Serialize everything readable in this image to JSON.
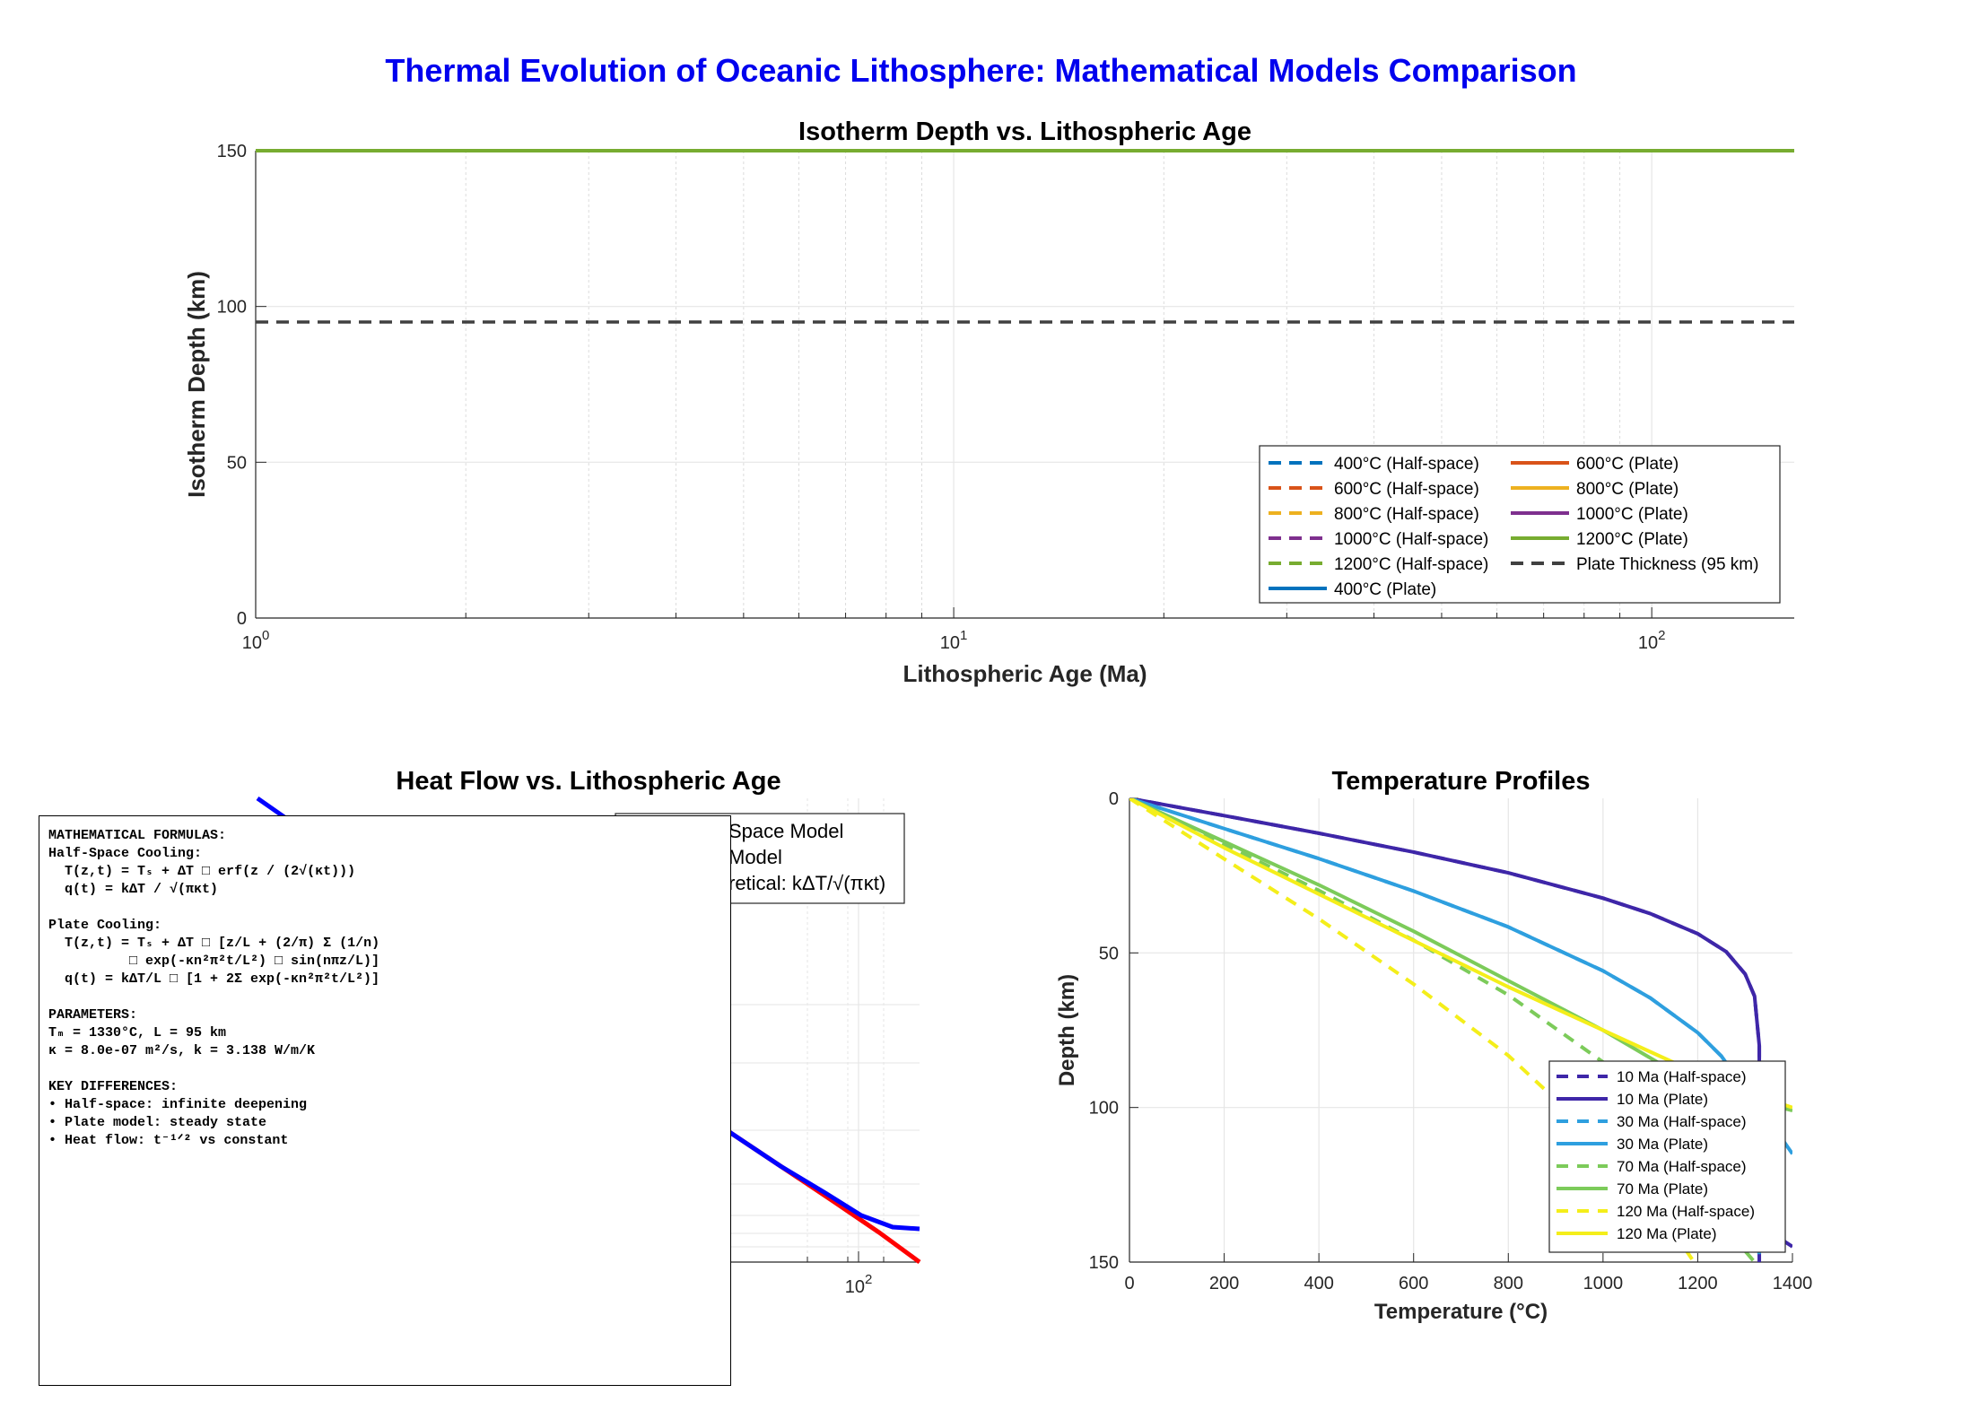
{
  "figure": {
    "suptitle": "Thermal Evolution of Oceanic Lithosphere: Mathematical Models Comparison",
    "title_color": "#0000ee"
  },
  "chart_data": [
    {
      "type": "line",
      "title": "Isotherm Depth vs. Lithospheric Age",
      "xlabel": "Lithospheric Age (Ma)",
      "ylabel": "Isotherm Depth (km)",
      "xscale": "log",
      "xlim": [
        1,
        160
      ],
      "ylim": [
        0,
        150
      ],
      "yticks": [
        0,
        50,
        100,
        150
      ],
      "xtick_labels": [
        {
          "value": 1,
          "base": "10",
          "exp": "0"
        },
        {
          "value": 10,
          "base": "10",
          "exp": "1"
        },
        {
          "value": 100,
          "base": "10",
          "exp": "2"
        }
      ],
      "grid": true,
      "legend_location": "lower-right",
      "legend_columns": 2,
      "legend": [
        {
          "label": "400°C (Half-space)",
          "color": "#0072bd",
          "dash": true
        },
        {
          "label": "600°C (Half-space)",
          "color": "#d95319",
          "dash": true
        },
        {
          "label": "800°C (Half-space)",
          "color": "#edb120",
          "dash": true
        },
        {
          "label": "1000°C (Half-space)",
          "color": "#7e2f8e",
          "dash": true
        },
        {
          "label": "1200°C (Half-space)",
          "color": "#77ac30",
          "dash": true
        },
        {
          "label": "400°C (Plate)",
          "color": "#0072bd",
          "dash": false
        },
        {
          "label": "600°C (Plate)",
          "color": "#d95319",
          "dash": false
        },
        {
          "label": "800°C (Plate)",
          "color": "#edb120",
          "dash": false
        },
        {
          "label": "1000°C (Plate)",
          "color": "#7e2f8e",
          "dash": false
        },
        {
          "label": "1200°C (Plate)",
          "color": "#77ac30",
          "dash": false
        },
        {
          "label": "Plate Thickness (95 km)",
          "color": "#404040",
          "dash": true
        }
      ],
      "series": [
        {
          "name": "1200°C (Plate)",
          "color": "#77ac30",
          "dash": false,
          "x": [
            1,
            160
          ],
          "y": [
            150,
            150
          ]
        },
        {
          "name": "Plate Thickness (95 km)",
          "color": "#404040",
          "dash": true,
          "x": [
            1,
            160
          ],
          "y": [
            95,
            95
          ]
        }
      ]
    },
    {
      "type": "line",
      "title": "Heat Flow vs. Lithospheric Age",
      "xscale": "log",
      "xtick_labels": [
        {
          "value": 100,
          "base": "10",
          "exp": "2"
        }
      ],
      "legend_visible_fragments": [
        "Space Model",
        "Model",
        "retical: kΔT/√(πκt)"
      ],
      "series": [
        {
          "name": "Half-space",
          "color": "#ff0000",
          "dash": false
        },
        {
          "name": "Plate",
          "color": "#0000ff",
          "dash": false
        }
      ]
    },
    {
      "type": "line",
      "title": "Temperature Profiles",
      "xlabel": "Temperature (°C)",
      "ylabel": "Depth (km)",
      "xlim": [
        0,
        1400
      ],
      "ylim": [
        0,
        150
      ],
      "y_reversed": true,
      "xticks": [
        0,
        200,
        400,
        600,
        800,
        1000,
        1200,
        1400
      ],
      "yticks": [
        0,
        50,
        100,
        150
      ],
      "grid": true,
      "legend_location": "lower-right",
      "legend": [
        {
          "label": "10 Ma (Half-space)",
          "color": "#3e26a8",
          "dash": true
        },
        {
          "label": "10 Ma (Plate)",
          "color": "#3e26a8",
          "dash": false
        },
        {
          "label": "30 Ma (Half-space)",
          "color": "#2e9fdf",
          "dash": true
        },
        {
          "label": "30 Ma (Plate)",
          "color": "#2e9fdf",
          "dash": false
        },
        {
          "label": "70 Ma (Half-space)",
          "color": "#7ccb5a",
          "dash": true
        },
        {
          "label": "70 Ma (Plate)",
          "color": "#7ccb5a",
          "dash": false
        },
        {
          "label": "120 Ma (Half-space)",
          "color": "#f4ee1a",
          "dash": true
        },
        {
          "label": "120 Ma (Plate)",
          "color": "#f4ee1a",
          "dash": false
        }
      ],
      "series": [
        {
          "name": "10 Ma (Half-space)",
          "color": "#3e26a8",
          "dash": true,
          "x": [
            0,
            200,
            400,
            600,
            800,
            1000,
            1100,
            1200,
            1260,
            1300,
            1320,
            1330,
            1330
          ],
          "y": [
            0,
            5.6,
            11.3,
            17.4,
            24.1,
            32.3,
            37.3,
            43.8,
            49.6,
            56.8,
            64,
            80,
            150
          ]
        },
        {
          "name": "10 Ma (Plate)",
          "color": "#3e26a8",
          "dash": false,
          "x": [
            0,
            200,
            400,
            600,
            800,
            1000,
            1100,
            1200,
            1260,
            1300,
            1320,
            1330,
            1330,
            1345,
            1370,
            1400
          ],
          "y": [
            0,
            5.6,
            11.3,
            17.4,
            24.1,
            32.3,
            37.3,
            43.8,
            49.6,
            56.8,
            64,
            80,
            125,
            135,
            142,
            145
          ]
        },
        {
          "name": "30 Ma (Half-space)",
          "color": "#2e9fdf",
          "dash": true,
          "x": [
            0,
            200,
            400,
            600,
            800,
            1000,
            1100,
            1200,
            1250,
            1290,
            1310,
            1325,
            1330
          ],
          "y": [
            0,
            9.8,
            19.5,
            30,
            41.6,
            55.8,
            64.6,
            75.8,
            83.4,
            92,
            100,
            115,
            150
          ]
        },
        {
          "name": "30 Ma (Plate)",
          "color": "#2e9fdf",
          "dash": false,
          "x": [
            0,
            200,
            400,
            600,
            800,
            1000,
            1100,
            1200,
            1250,
            1290,
            1310,
            1350,
            1400
          ],
          "y": [
            0,
            9.8,
            19.5,
            30,
            41.6,
            55.8,
            64.6,
            75.8,
            83.4,
            92,
            96,
            104,
            115
          ]
        },
        {
          "name": "70 Ma (Half-space)",
          "color": "#7ccb5a",
          "dash": true,
          "x": [
            0,
            200,
            400,
            600,
            800,
            1000,
            1100,
            1200,
            1260,
            1300,
            1320
          ],
          "y": [
            0,
            15,
            29.8,
            45.9,
            63.6,
            85.3,
            98.6,
            115.9,
            130.6,
            146.4,
            150
          ]
        },
        {
          "name": "70 Ma (Plate)",
          "color": "#7ccb5a",
          "dash": false,
          "x": [
            0,
            200,
            400,
            600,
            800,
            1000,
            1100,
            1200,
            1300,
            1400
          ],
          "y": [
            0,
            14,
            28,
            43,
            59,
            75,
            84,
            93,
            97,
            101
          ]
        },
        {
          "name": "120 Ma (Half-space)",
          "color": "#f4ee1a",
          "dash": true,
          "x": [
            0,
            200,
            400,
            600,
            800,
            1000,
            1100,
            1200,
            1240
          ],
          "y": [
            0,
            19.6,
            39,
            60.1,
            83.2,
            111.7,
            129.1,
            151.8,
            155
          ]
        },
        {
          "name": "120 Ma (Plate)",
          "color": "#f4ee1a",
          "dash": false,
          "x": [
            0,
            200,
            400,
            600,
            800,
            1000,
            1100,
            1200,
            1300,
            1400
          ],
          "y": [
            0,
            16,
            31,
            46,
            61,
            75,
            82,
            89,
            95,
            100
          ]
        }
      ]
    }
  ],
  "formulas": {
    "lines": [
      "MATHEMATICAL FORMULAS:",
      "Half-Space Cooling:",
      "  T(z,t) = Tₛ + ΔT □ erf(z / (2√(κt)))",
      "  q(t) = kΔT / √(πκt)",
      "",
      "Plate Cooling:",
      "  T(z,t) = Tₛ + ΔT □ [z/L + (2/π) Σ (1/n)",
      "          □ exp(-κn²π²t/L²) □ sin(nπz/L)]",
      "  q(t) = kΔT/L □ [1 + 2Σ exp(-κn²π²t/L²)]",
      "",
      "PARAMETERS:",
      "Tₘ = 1330°C, L = 95 km",
      "κ = 8.0e-07 m²/s, k = 3.138 W/m/K",
      "",
      "KEY DIFFERENCES:",
      "• Half-space: infinite deepening",
      "• Plate model: steady state",
      "• Heat flow: t⁻¹ᐟ² vs constant"
    ]
  }
}
